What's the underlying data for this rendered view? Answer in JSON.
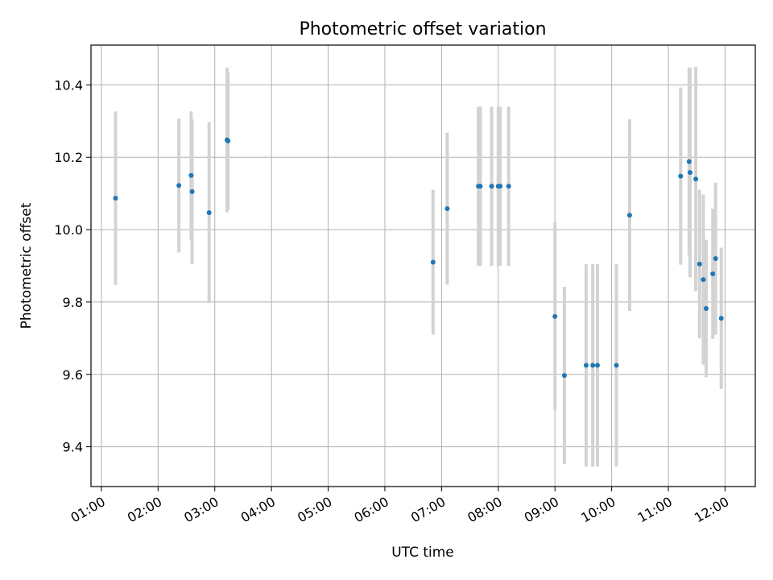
{
  "chart_data": {
    "type": "scatter",
    "title": "Photometric offset variation",
    "xlabel": "UTC time",
    "ylabel": "Photometric offset",
    "x_ticks": [
      "01:00",
      "02:00",
      "03:00",
      "04:00",
      "05:00",
      "06:00",
      "07:00",
      "08:00",
      "09:00",
      "10:00",
      "11:00",
      "12:00"
    ],
    "y_ticks": [
      "9.4",
      "9.6",
      "9.8",
      "10.0",
      "10.2",
      "10.4"
    ],
    "xlim": [
      "00:49",
      "12:32"
    ],
    "ylim": [
      9.29,
      10.51
    ],
    "grid": true,
    "marker_color": "#1f77b4",
    "errorbar_color": "#d3d3d3",
    "points": [
      {
        "x": "01:15",
        "y": 10.087,
        "err": 0.24
      },
      {
        "x": "02:22",
        "y": 10.122,
        "err": 0.185
      },
      {
        "x": "02:35",
        "y": 10.15,
        "err": 0.177
      },
      {
        "x": "02:36",
        "y": 10.105,
        "err": 0.2
      },
      {
        "x": "02:54",
        "y": 10.047,
        "err": 0.25
      },
      {
        "x": "03:13",
        "y": 10.248,
        "err": 0.2
      },
      {
        "x": "03:14",
        "y": 10.245,
        "err": 0.19
      },
      {
        "x": "06:51",
        "y": 9.91,
        "err": 0.2
      },
      {
        "x": "07:06",
        "y": 10.058,
        "err": 0.21
      },
      {
        "x": "07:39",
        "y": 10.12,
        "err": 0.22
      },
      {
        "x": "07:41",
        "y": 10.12,
        "err": 0.22
      },
      {
        "x": "07:53",
        "y": 10.12,
        "err": 0.22
      },
      {
        "x": "08:00",
        "y": 10.12,
        "err": 0.22
      },
      {
        "x": "08:02",
        "y": 10.12,
        "err": 0.22
      },
      {
        "x": "08:11",
        "y": 10.12,
        "err": 0.22
      },
      {
        "x": "09:00",
        "y": 9.76,
        "err": 0.26
      },
      {
        "x": "09:10",
        "y": 9.597,
        "err": 0.245
      },
      {
        "x": "09:33",
        "y": 9.625,
        "err": 0.28
      },
      {
        "x": "09:40",
        "y": 9.625,
        "err": 0.28
      },
      {
        "x": "09:45",
        "y": 9.625,
        "err": 0.28
      },
      {
        "x": "10:05",
        "y": 9.625,
        "err": 0.28
      },
      {
        "x": "10:19",
        "y": 10.04,
        "err": 0.265
      },
      {
        "x": "11:13",
        "y": 10.148,
        "err": 0.245
      },
      {
        "x": "11:22",
        "y": 10.188,
        "err": 0.26
      },
      {
        "x": "11:23",
        "y": 10.158,
        "err": 0.29
      },
      {
        "x": "11:29",
        "y": 10.14,
        "err": 0.31
      },
      {
        "x": "11:33",
        "y": 9.905,
        "err": 0.205
      },
      {
        "x": "11:37",
        "y": 9.862,
        "err": 0.235
      },
      {
        "x": "11:40",
        "y": 9.782,
        "err": 0.19
      },
      {
        "x": "11:47",
        "y": 9.878,
        "err": 0.18
      },
      {
        "x": "11:50",
        "y": 9.92,
        "err": 0.21
      },
      {
        "x": "11:56",
        "y": 9.755,
        "err": 0.195
      }
    ]
  }
}
